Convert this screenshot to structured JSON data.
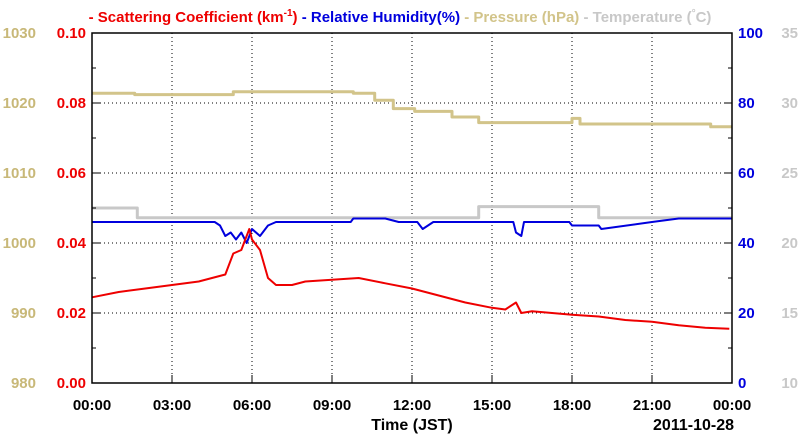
{
  "chart_data": {
    "type": "line",
    "legend": {
      "placement": "top",
      "entries": [
        {
          "label": "Scattering Coefficient (km",
          "sup": "-1",
          "close": ")",
          "color": "#ee0000"
        },
        {
          "label": "Relative Humidity(%)",
          "color": "#0000dd"
        },
        {
          "label": "Pressure (hPa)",
          "color": "#d2c48a"
        },
        {
          "label": "Temperature (",
          "sup": "°",
          "close": "C)",
          "color": "#c8c8c8"
        }
      ]
    },
    "xlabel": "Time (JST)",
    "date_label": "2011-10-28",
    "x_hours_range": [
      0,
      24
    ],
    "x_ticks": [
      {
        "h": 0,
        "label": "00:00"
      },
      {
        "h": 3,
        "label": "03:00"
      },
      {
        "h": 6,
        "label": "06:00"
      },
      {
        "h": 9,
        "label": "09:00"
      },
      {
        "h": 12,
        "label": "12:00"
      },
      {
        "h": 15,
        "label": "15:00"
      },
      {
        "h": 18,
        "label": "18:00"
      },
      {
        "h": 21,
        "label": "21:00"
      },
      {
        "h": 24,
        "label": "00:00"
      }
    ],
    "grid": true,
    "axes": {
      "scattering": {
        "range": [
          0,
          0.1
        ],
        "color": "#ee0000",
        "ticks": [
          "0.00",
          "0.02",
          "0.04",
          "0.06",
          "0.08",
          "0.10"
        ]
      },
      "pressure": {
        "range": [
          980,
          1030
        ],
        "color": "#c8b878",
        "ticks": [
          "980",
          "990",
          "1000",
          "1010",
          "1020",
          "1030"
        ]
      },
      "humidity": {
        "range": [
          0,
          100
        ],
        "color": "#0000dd",
        "ticks": [
          "0",
          "20",
          "40",
          "60",
          "80",
          "100"
        ]
      },
      "temperature": {
        "range": [
          10,
          35
        ],
        "color": "#c8c8c8",
        "ticks": [
          "10",
          "15",
          "20",
          "25",
          "30",
          "35"
        ]
      }
    },
    "series": [
      {
        "name": "Scattering Coefficient (km-1)",
        "axis": "scattering",
        "color": "#ee0000",
        "x_hours": [
          0,
          1,
          2,
          3,
          4,
          4.5,
          5,
          5.3,
          5.6,
          5.9,
          6.0,
          6.3,
          6.6,
          6.9,
          7.5,
          8,
          9,
          10,
          11,
          12,
          13,
          14,
          15,
          15.5,
          15.9,
          16.1,
          16.5,
          18,
          19,
          20,
          21,
          22,
          23,
          23.9
        ],
        "values": [
          0.0245,
          0.026,
          0.027,
          0.028,
          0.029,
          0.03,
          0.031,
          0.037,
          0.038,
          0.044,
          0.041,
          0.038,
          0.03,
          0.028,
          0.028,
          0.029,
          0.0295,
          0.03,
          0.0285,
          0.027,
          0.025,
          0.023,
          0.0215,
          0.021,
          0.023,
          0.02,
          0.0205,
          0.0195,
          0.019,
          0.018,
          0.0175,
          0.0165,
          0.0158,
          0.0155
        ]
      },
      {
        "name": "Relative Humidity(%)",
        "axis": "humidity",
        "color": "#0000dd",
        "x_hours": [
          0,
          4.6,
          4.8,
          5.0,
          5.2,
          5.4,
          5.6,
          5.8,
          6.0,
          6.3,
          6.6,
          6.9,
          7.2,
          9.7,
          9.8,
          11.0,
          11.5,
          12.2,
          12.4,
          12.8,
          15.8,
          15.9,
          16.1,
          16.2,
          17.9,
          18.0,
          19.0,
          19.1,
          21.0,
          22.0,
          24.0
        ],
        "values": [
          46,
          46,
          45,
          42,
          43,
          41,
          43,
          40,
          44,
          42,
          45,
          46,
          46,
          46,
          47,
          47,
          46,
          46,
          44,
          46,
          46,
          43,
          42,
          46,
          46,
          45,
          45,
          44,
          46,
          47,
          47
        ]
      },
      {
        "name": "Pressure (hPa)",
        "axis": "pressure",
        "color": "#d2c48a",
        "steps": [
          [
            0.0,
            1021.4
          ],
          [
            1.6,
            1021.2
          ],
          [
            5.3,
            1021.6
          ],
          [
            9.8,
            1021.4
          ],
          [
            10.6,
            1020.4
          ],
          [
            11.3,
            1019.2
          ],
          [
            12.1,
            1018.8
          ],
          [
            13.5,
            1018.0
          ],
          [
            14.5,
            1017.2
          ],
          [
            18.0,
            1017.8
          ],
          [
            18.3,
            1017.0
          ],
          [
            23.2,
            1016.6
          ],
          [
            24.0,
            1016.6
          ]
        ]
      },
      {
        "name": "Temperature (C)",
        "axis": "temperature",
        "color": "#c8c8c8",
        "steps": [
          [
            0.0,
            22.5
          ],
          [
            1.7,
            21.8
          ],
          [
            14.5,
            22.6
          ],
          [
            19.0,
            21.8
          ],
          [
            24.0,
            21.8
          ]
        ]
      }
    ]
  }
}
